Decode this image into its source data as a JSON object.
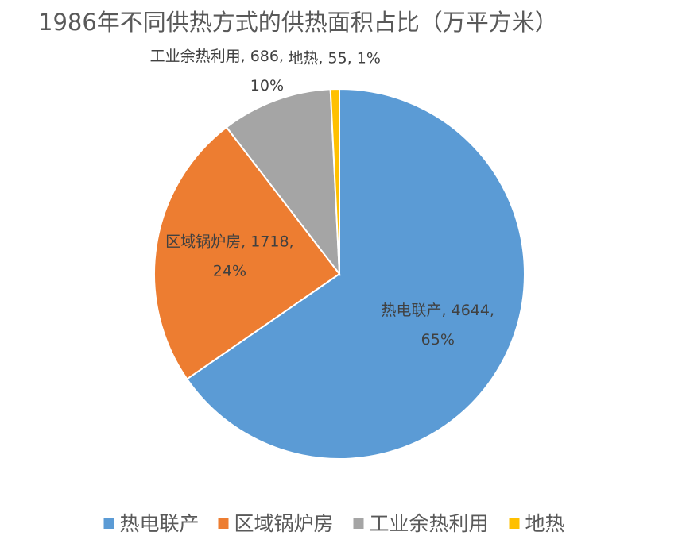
{
  "chart_data": {
    "type": "pie",
    "title": "1986年不同供热方式的供热面积占比（万平方米）",
    "categories": [
      "热电联产",
      "区域锅炉房",
      "工业余热利用",
      "地热"
    ],
    "values": [
      4644,
      1718,
      686,
      55
    ],
    "value_labels": [
      [
        "热电联产, 4644,",
        "65%"
      ],
      [
        "区域锅炉房, 1718,",
        "24%"
      ],
      [
        "工业余热利用, 686,",
        "10%"
      ],
      [
        "地热, 55, 1%"
      ]
    ],
    "colors": [
      "#5b9bd5",
      "#ed7d31",
      "#a5a5a5",
      "#ffc000"
    ],
    "legend": "bottom"
  }
}
